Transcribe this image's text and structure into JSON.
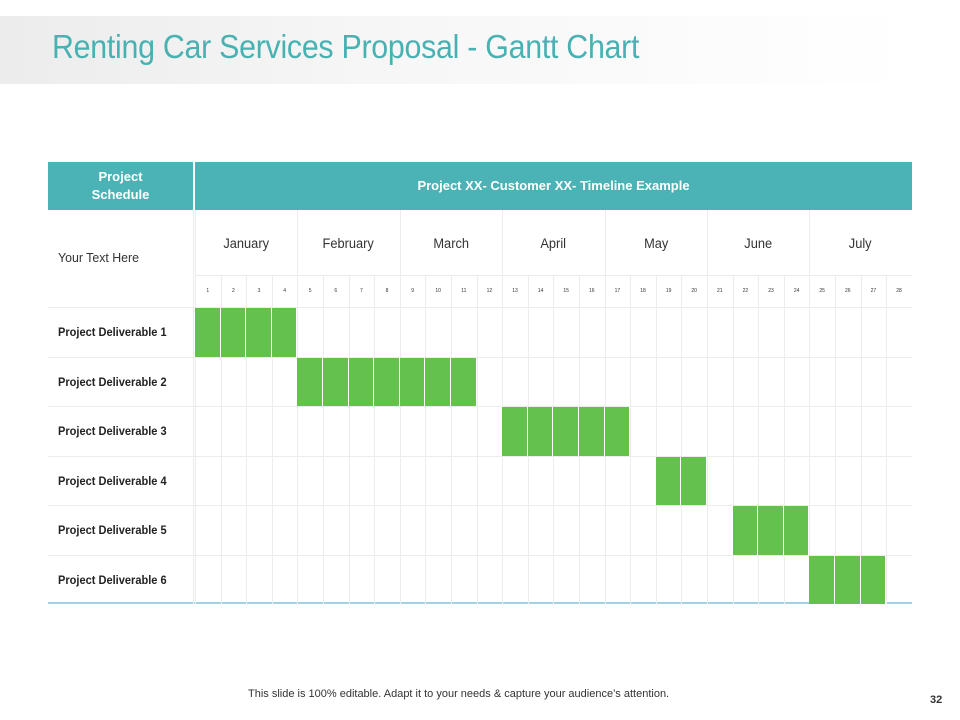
{
  "slide": {
    "title": "Renting Car Services Proposal - Gantt Chart",
    "footer": "This slide is 100% editable. Adapt it to your needs & capture your audience’s attention.",
    "page_number": "32"
  },
  "chart_data": {
    "type": "gantt",
    "header_left_line1": "Project",
    "header_left_line2": "Schedule",
    "header_right": "Project XX- Customer XX- Timeline Example",
    "row_header": "Your Text Here",
    "months": [
      {
        "name": "January",
        "start_week": 1,
        "end_week": 4
      },
      {
        "name": "February",
        "start_week": 5,
        "end_week": 8
      },
      {
        "name": "March",
        "start_week": 9,
        "end_week": 12
      },
      {
        "name": "April",
        "start_week": 13,
        "end_week": 16
      },
      {
        "name": "May",
        "start_week": 17,
        "end_week": 20
      },
      {
        "name": "June",
        "start_week": 21,
        "end_week": 24
      },
      {
        "name": "July",
        "start_week": 25,
        "end_week": 28
      }
    ],
    "weeks": [
      "1",
      "2",
      "3",
      "4",
      "5",
      "6",
      "7",
      "8",
      "9",
      "10",
      "11",
      "12",
      "13",
      "14",
      "15",
      "16",
      "17",
      "18",
      "19",
      "20",
      "21",
      "22",
      "23",
      "24",
      "25",
      "26",
      "27",
      "28"
    ],
    "tasks": [
      {
        "name": "Project Deliverable 1",
        "start_week": 1,
        "end_week": 4
      },
      {
        "name": "Project Deliverable 2",
        "start_week": 5,
        "end_week": 11
      },
      {
        "name": "Project Deliverable 3",
        "start_week": 13,
        "end_week": 17
      },
      {
        "name": "Project Deliverable 4",
        "start_week": 19,
        "end_week": 20
      },
      {
        "name": "Project Deliverable 5",
        "start_week": 22,
        "end_week": 24
      },
      {
        "name": "Project Deliverable 6",
        "start_week": 25,
        "end_week": 27
      }
    ],
    "bar_color": "#64c14d",
    "header_color": "#4bb3b5"
  }
}
